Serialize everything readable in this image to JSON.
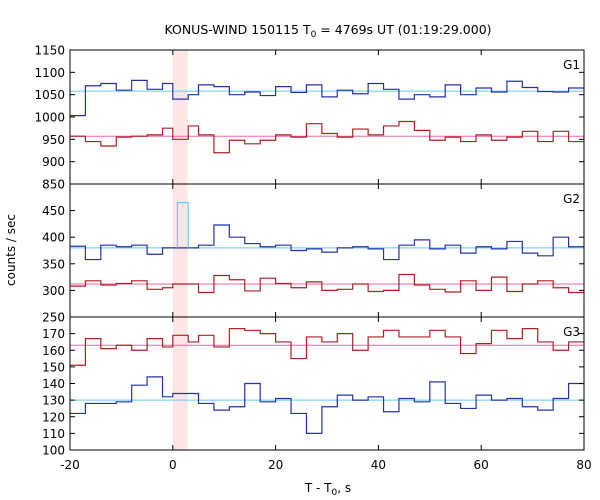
{
  "chart_data": {
    "type": "line",
    "title_main": "KONUS-WIND 150115 T",
    "title_sub": "0",
    "title_rest": " = 4769s UT (01:19:29.000)",
    "xlabel_main": "T - T",
    "xlabel_sub": "0",
    "xlabel_rest": ", s",
    "ylabel": "counts / sec",
    "xlim": [
      -20,
      80
    ],
    "x_ticks": [
      -20,
      0,
      20,
      40,
      60,
      80
    ],
    "highlight": {
      "from": 0,
      "to": 2.9,
      "color": "#fde6e6"
    },
    "bin_edges": [
      -20,
      -17,
      -14,
      -11,
      -8,
      -5,
      -2,
      0,
      0.9,
      3,
      5,
      8,
      11,
      14,
      17,
      20,
      23,
      26,
      29,
      32,
      35,
      38,
      41,
      44,
      47,
      50,
      53,
      56,
      59,
      62,
      65,
      68,
      71,
      74,
      77,
      80
    ],
    "panels": [
      {
        "name": "G1",
        "ylim": [
          850,
          1150
        ],
        "y_ticks": [
          850,
          900,
          950,
          1000,
          1050,
          1100,
          1150
        ],
        "baselines": [
          {
            "value": 1058,
            "color": "#66ccee"
          },
          {
            "value": 957,
            "color": "#ee66aa"
          }
        ],
        "series": [
          {
            "color": "#2233aa",
            "values": [
              1003,
              1070,
              1075,
              1060,
              1082,
              1062,
              1075,
              1040,
              1040,
              1050,
              1072,
              1068,
              1050,
              1056,
              1048,
              1068,
              1055,
              1072,
              1045,
              1060,
              1052,
              1075,
              1062,
              1040,
              1050,
              1045,
              1072,
              1050,
              1065,
              1056,
              1080,
              1066,
              1057,
              1056,
              1065
            ]
          },
          {
            "color": "#aa2222",
            "values": [
              957,
              945,
              935,
              955,
              957,
              960,
              975,
              950,
              950,
              980,
              960,
              920,
              948,
              940,
              948,
              960,
              955,
              985,
              963,
              955,
              973,
              960,
              980,
              990,
              970,
              948,
              955,
              945,
              960,
              948,
              955,
              968,
              945,
              968,
              945
            ]
          }
        ]
      },
      {
        "name": "G2",
        "ylim": [
          250,
          500
        ],
        "y_ticks": [
          250,
          300,
          350,
          400,
          450
        ],
        "baselines": [
          {
            "value": 380,
            "color": "#66ccee"
          },
          {
            "value": 312,
            "color": "#ee66aa"
          }
        ],
        "series": [
          {
            "color": "#2233aa",
            "values": [
              383,
              358,
              385,
              382,
              385,
              368,
              380,
              380,
              380,
              380,
              385,
              423,
              400,
              388,
              382,
              385,
              375,
              378,
              372,
              380,
              382,
              378,
              358,
              385,
              395,
              378,
              385,
              370,
              382,
              378,
              392,
              370,
              365,
              400,
              382
            ]
          },
          {
            "color": "#aa2222",
            "values": [
              308,
              318,
              310,
              313,
              318,
              302,
              305,
              312,
              312,
              312,
              296,
              328,
              320,
              299,
              323,
              313,
              305,
              316,
              300,
              302,
              312,
              298,
              300,
              330,
              310,
              302,
              297,
              318,
              300,
              325,
              298,
              312,
              318,
              305,
              296
            ]
          },
          {
            "color": "#66ccee",
            "values": [
              null,
              null,
              null,
              null,
              null,
              null,
              null,
              null,
              465,
              null,
              null,
              null,
              null,
              null,
              null,
              null,
              null,
              null,
              null,
              null,
              null,
              null,
              null,
              null,
              null,
              null,
              null,
              null,
              null,
              null,
              null,
              null,
              null,
              null,
              null
            ]
          }
        ]
      },
      {
        "name": "G3",
        "ylim": [
          100,
          180
        ],
        "y_ticks": [
          100,
          110,
          120,
          130,
          140,
          150,
          160,
          170
        ],
        "baselines": [
          {
            "value": 130,
            "color": "#66ccee"
          },
          {
            "value": 163,
            "color": "#ee66aa"
          }
        ],
        "series": [
          {
            "color": "#2233aa",
            "values": [
              122,
              128,
              128,
              129,
              139,
              144,
              132,
              134,
              134,
              134,
              128,
              124,
              126,
              140,
              129,
              131,
              122,
              110,
              126,
              133,
              130,
              132,
              123,
              131,
              129,
              141,
              128,
              125,
              133,
              130,
              131,
              126,
              124,
              131,
              140
            ]
          },
          {
            "color": "#aa2222",
            "values": [
              151,
              167,
              161,
              163,
              160,
              167,
              162,
              169,
              169,
              165,
              169,
              162,
              173,
              172,
              170,
              165,
              155,
              168,
              165,
              170,
              160,
              168,
              172,
              168,
              168,
              172,
              168,
              158,
              164,
              172,
              167,
              173,
              165,
              160,
              165
            ]
          }
        ]
      }
    ]
  }
}
